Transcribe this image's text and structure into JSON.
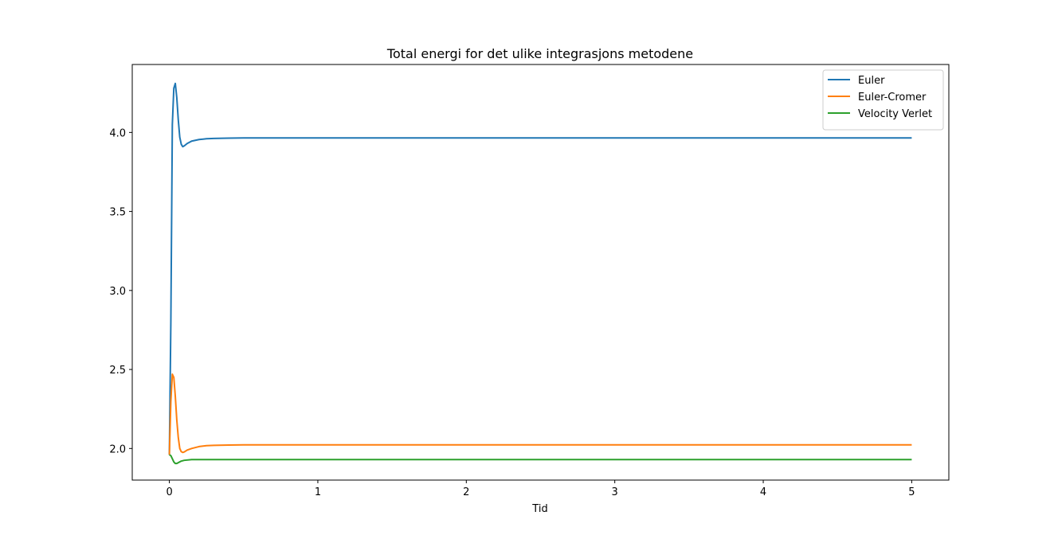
{
  "chart_data": {
    "type": "line",
    "title": "Total energi for det ulike integrasjons metodene",
    "xlabel": "Tid",
    "ylabel": "",
    "xlim": [
      -0.25,
      5.25
    ],
    "ylim": [
      1.8,
      4.43
    ],
    "xticks": [
      0,
      1,
      2,
      3,
      4,
      5
    ],
    "xtick_labels": [
      "0",
      "1",
      "2",
      "3",
      "4",
      "5"
    ],
    "yticks": [
      2.0,
      2.5,
      3.0,
      3.5,
      4.0
    ],
    "ytick_labels": [
      "2.0",
      "2.5",
      "3.0",
      "3.5",
      "4.0"
    ],
    "grid": false,
    "legend_position": "top-right",
    "series": [
      {
        "name": "Euler",
        "color": "#1f77b4",
        "x": [
          0,
          0.01,
          0.02,
          0.03,
          0.04,
          0.05,
          0.06,
          0.07,
          0.08,
          0.09,
          0.1,
          0.12,
          0.15,
          0.2,
          0.25,
          0.3,
          0.4,
          0.5,
          1,
          2,
          3,
          4,
          5
        ],
        "y": [
          1.96,
          2.8,
          4.05,
          4.28,
          4.31,
          4.22,
          4.08,
          3.97,
          3.925,
          3.91,
          3.915,
          3.93,
          3.945,
          3.955,
          3.96,
          3.962,
          3.964,
          3.965,
          3.965,
          3.965,
          3.965,
          3.965,
          3.965
        ]
      },
      {
        "name": "Euler-Cromer",
        "color": "#ff7f0e",
        "x": [
          0,
          0.01,
          0.02,
          0.03,
          0.04,
          0.05,
          0.06,
          0.07,
          0.08,
          0.09,
          0.1,
          0.12,
          0.15,
          0.2,
          0.25,
          0.3,
          0.4,
          0.5,
          1,
          2,
          3,
          4,
          5
        ],
        "y": [
          1.96,
          2.3,
          2.47,
          2.45,
          2.33,
          2.18,
          2.07,
          2.0,
          1.98,
          1.975,
          1.978,
          1.99,
          2.0,
          2.012,
          2.018,
          2.02,
          2.022,
          2.023,
          2.023,
          2.023,
          2.023,
          2.023,
          2.023
        ]
      },
      {
        "name": "Velocity Verlet",
        "color": "#2ca02c",
        "x": [
          0,
          0.01,
          0.02,
          0.03,
          0.04,
          0.05,
          0.06,
          0.08,
          0.1,
          0.15,
          0.2,
          0.5,
          1,
          2,
          3,
          4,
          5
        ],
        "y": [
          1.96,
          1.955,
          1.935,
          1.915,
          1.905,
          1.905,
          1.91,
          1.92,
          1.925,
          1.93,
          1.93,
          1.93,
          1.93,
          1.93,
          1.93,
          1.93,
          1.93
        ]
      }
    ]
  }
}
